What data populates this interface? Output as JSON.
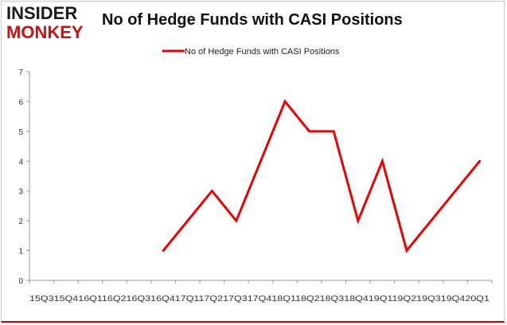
{
  "logo": {
    "line1": "INSIDER",
    "line2": "MONKEY"
  },
  "chart_data": {
    "type": "line",
    "title": "No of Hedge Funds with CASI Positions",
    "xlabel": "",
    "ylabel": "",
    "ylim": [
      0,
      7
    ],
    "grid": false,
    "legend_placement": "top-center",
    "categories": [
      "15Q3",
      "15Q4",
      "16Q1",
      "16Q2",
      "16Q3",
      "16Q4",
      "17Q1",
      "17Q2",
      "17Q3",
      "17Q4",
      "18Q1",
      "18Q2",
      "18Q3",
      "18Q4",
      "19Q1",
      "19Q2",
      "19Q3",
      "19Q4",
      "20Q1"
    ],
    "x_tick_text": "15Q315Q416Q116Q216Q316Q417Q117Q217Q317Q418Q118Q218Q318Q419Q119Q219Q319Q420Q1",
    "y_ticks": [
      "0",
      "1",
      "2",
      "3",
      "4",
      "5",
      "6",
      "7"
    ],
    "series": [
      {
        "name": "No of Hedge Funds with CASI Positions",
        "color": "#ee0000",
        "values": [
          null,
          null,
          null,
          null,
          null,
          1,
          2,
          3,
          2,
          4,
          6,
          5,
          5,
          2,
          4,
          1,
          2,
          3,
          4
        ]
      }
    ]
  }
}
